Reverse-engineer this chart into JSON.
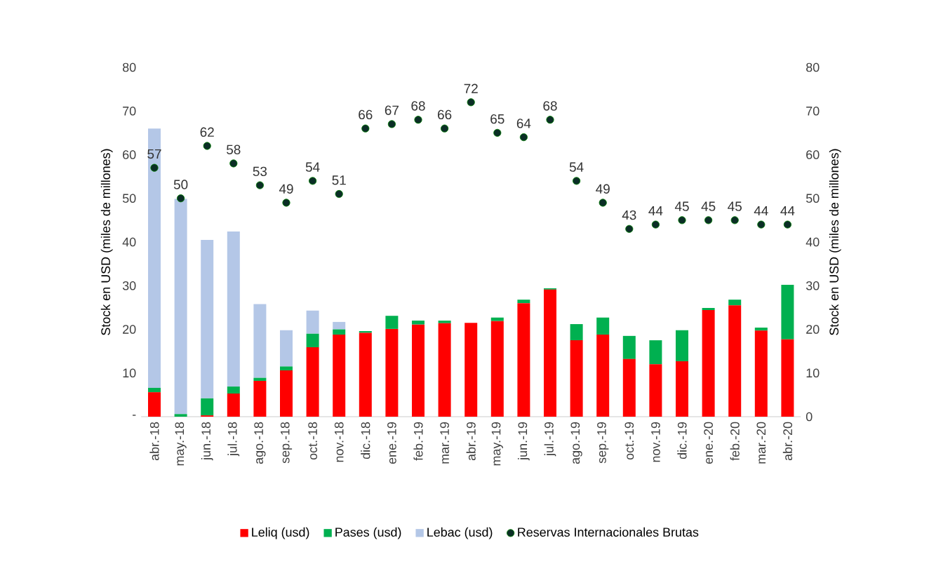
{
  "chart_data": {
    "type": "bar",
    "stacked": true,
    "ylabel": "Stock en USD (miles de millones)",
    "y2label": "Stock en USD (miles de millones)",
    "categories": [
      "abr.-18",
      "may.-18",
      "jun.-18",
      "jul.-18",
      "ago.-18",
      "sep.-18",
      "oct.-18",
      "nov.-18",
      "dic.-18",
      "ene.-19",
      "feb.-19",
      "mar.-19",
      "abr.-19",
      "may.-19",
      "jun.-19",
      "jul.-19",
      "ago.-19",
      "sep.-19",
      "oct.-19",
      "nov.-19",
      "dic.-19",
      "ene.-20",
      "feb.-20",
      "mar.-20",
      "abr.-20"
    ],
    "series": [
      {
        "name": "Leliq (usd)",
        "color": "#ff0000",
        "values": [
          5.6,
          0,
          0.3,
          5.3,
          8.2,
          10.6,
          15.9,
          18.8,
          19.2,
          20.1,
          21.1,
          21.4,
          21.5,
          21.9,
          26.0,
          29.1,
          17.5,
          18.8,
          13.2,
          12.0,
          12.7,
          24.4,
          25.5,
          19.7,
          17.7
        ]
      },
      {
        "name": "Pases (usd)",
        "color": "#00b050",
        "values": [
          1.0,
          0.6,
          3.9,
          1.6,
          0.7,
          0.9,
          3.1,
          1.2,
          0.4,
          3.0,
          0.9,
          0.6,
          null,
          0.8,
          0.8,
          0.3,
          3.7,
          3.9,
          5.3,
          5.5,
          7.1,
          0.5,
          1.3,
          0.7,
          12.5
        ]
      },
      {
        "name": "Lebac (usd)",
        "color": "#b4c7e7",
        "values": [
          59.4,
          49.3,
          36.3,
          35.5,
          16.9,
          8.3,
          5.3,
          1.7,
          0,
          0,
          0,
          0,
          0,
          0,
          0,
          0,
          0,
          0,
          0,
          0,
          0,
          0,
          0,
          0,
          0
        ]
      },
      {
        "name": "Reservas Internacionales Brutas",
        "type": "scatter",
        "axis": "y2",
        "marker": "circle",
        "data_labels": true,
        "color": "#0b2e26",
        "values": [
          57,
          50,
          62,
          58,
          53,
          49,
          54,
          51,
          66,
          67,
          68,
          66,
          72,
          65,
          64,
          68,
          54,
          49,
          43,
          44,
          45,
          45,
          45,
          44,
          44
        ]
      }
    ],
    "ylim": [
      0,
      80
    ],
    "yticks": [
      {
        "value": 0,
        "label": "-"
      },
      10,
      20,
      30,
      40,
      50,
      60,
      70,
      80
    ],
    "y2lim": [
      0,
      80
    ],
    "y2ticks": [
      0,
      10,
      20,
      30,
      40,
      50,
      60,
      70,
      80
    ],
    "legend": "bottom",
    "grid": false
  }
}
